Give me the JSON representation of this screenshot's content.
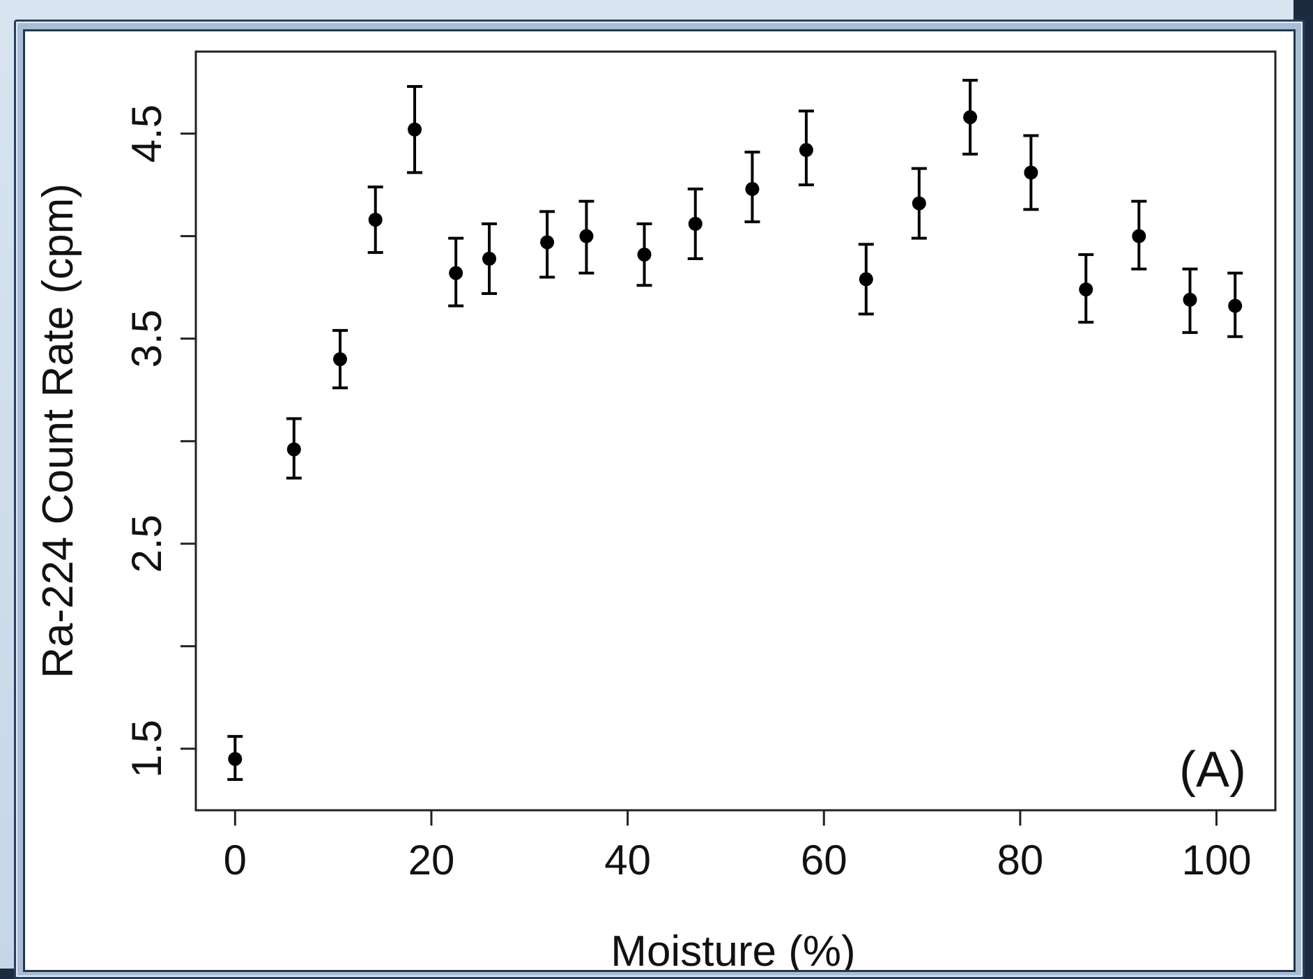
{
  "chart_data": {
    "type": "scatter",
    "xlabel": "Moisture (%)",
    "ylabel": "Ra-224 Count Rate (cpm)",
    "annotation": "(A)",
    "xlim": [
      -4,
      106
    ],
    "ylim": [
      1.2,
      4.9
    ],
    "x_ticks": [
      0,
      20,
      40,
      60,
      80,
      100
    ],
    "y_ticks": [
      1.5,
      2,
      2.5,
      3,
      3.5,
      4,
      4.5
    ],
    "y_tick_labels": [
      "1.5",
      "",
      "2.5",
      "",
      "3.5",
      "",
      "4.5"
    ],
    "x_tick_labels": [
      "0",
      "20",
      "40",
      "60",
      "80",
      "100"
    ],
    "grid": false,
    "error_bars": true,
    "points": [
      {
        "x": 0,
        "y": 1.45,
        "lo": 1.35,
        "hi": 1.56
      },
      {
        "x": 6,
        "y": 2.96,
        "lo": 2.82,
        "hi": 3.11
      },
      {
        "x": 10.7,
        "y": 3.4,
        "lo": 3.26,
        "hi": 3.54
      },
      {
        "x": 14.3,
        "y": 4.08,
        "lo": 3.92,
        "hi": 4.24
      },
      {
        "x": 18.3,
        "y": 4.52,
        "lo": 4.31,
        "hi": 4.73
      },
      {
        "x": 22.5,
        "y": 3.82,
        "lo": 3.66,
        "hi": 3.99
      },
      {
        "x": 25.9,
        "y": 3.89,
        "lo": 3.72,
        "hi": 4.06
      },
      {
        "x": 31.8,
        "y": 3.97,
        "lo": 3.8,
        "hi": 4.12
      },
      {
        "x": 35.8,
        "y": 4.0,
        "lo": 3.82,
        "hi": 4.17
      },
      {
        "x": 41.7,
        "y": 3.91,
        "lo": 3.76,
        "hi": 4.06
      },
      {
        "x": 46.9,
        "y": 4.06,
        "lo": 3.89,
        "hi": 4.23
      },
      {
        "x": 52.7,
        "y": 4.23,
        "lo": 4.07,
        "hi": 4.41
      },
      {
        "x": 58.2,
        "y": 4.42,
        "lo": 4.25,
        "hi": 4.61
      },
      {
        "x": 64.3,
        "y": 3.79,
        "lo": 3.62,
        "hi": 3.96
      },
      {
        "x": 69.7,
        "y": 4.16,
        "lo": 3.99,
        "hi": 4.33
      },
      {
        "x": 74.9,
        "y": 4.58,
        "lo": 4.4,
        "hi": 4.76
      },
      {
        "x": 81.1,
        "y": 4.31,
        "lo": 4.13,
        "hi": 4.49
      },
      {
        "x": 86.7,
        "y": 3.74,
        "lo": 3.58,
        "hi": 3.91
      },
      {
        "x": 92.1,
        "y": 4.0,
        "lo": 3.84,
        "hi": 4.17
      },
      {
        "x": 97.3,
        "y": 3.69,
        "lo": 3.53,
        "hi": 3.84
      },
      {
        "x": 101.9,
        "y": 3.66,
        "lo": 3.51,
        "hi": 3.82
      }
    ]
  }
}
